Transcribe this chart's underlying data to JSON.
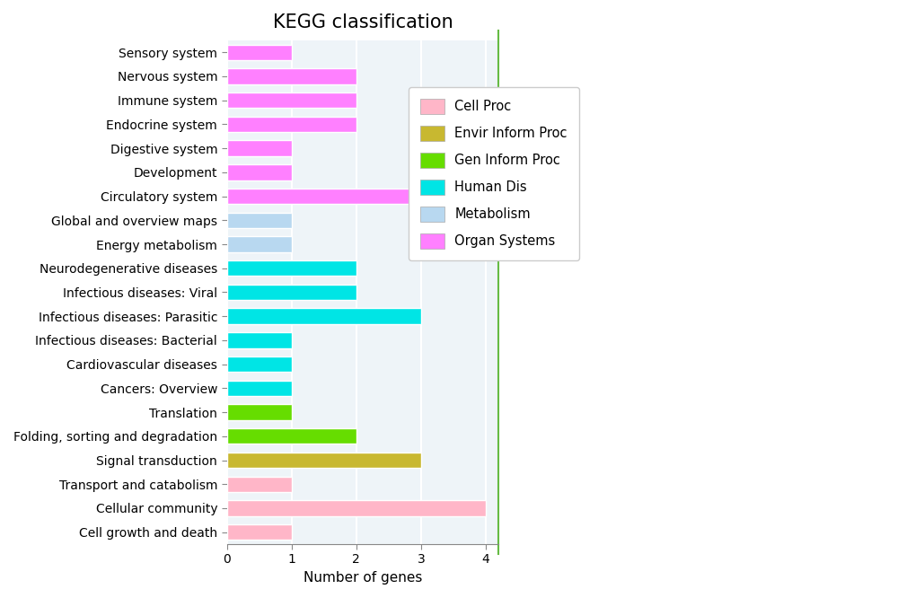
{
  "title": "KEGG classification",
  "xlabel": "Number of genes",
  "categories": [
    "Cell growth and death",
    "Cellular community",
    "Transport and catabolism",
    "Signal transduction",
    "Folding, sorting and degradation",
    "Translation",
    "Cancers: Overview",
    "Cardiovascular diseases",
    "Infectious diseases: Bacterial",
    "Infectious diseases: Parasitic",
    "Infectious diseases: Viral",
    "Neurodegenerative diseases",
    "Energy metabolism",
    "Global and overview maps",
    "Circulatory system",
    "Development",
    "Digestive system",
    "Endocrine system",
    "Immune system",
    "Nervous system",
    "Sensory system"
  ],
  "values": [
    1,
    4,
    1,
    3,
    2,
    1,
    1,
    1,
    1,
    3,
    2,
    2,
    1,
    1,
    3,
    1,
    1,
    2,
    2,
    2,
    1
  ],
  "colors": [
    "#FFB6C8",
    "#FFB6C8",
    "#FFB6C8",
    "#C8B830",
    "#66DD00",
    "#66DD00",
    "#00E5E5",
    "#00E5E5",
    "#00E5E5",
    "#00E5E5",
    "#00E5E5",
    "#00E5E5",
    "#B8D8F0",
    "#B8D8F0",
    "#FF80FF",
    "#FF80FF",
    "#FF80FF",
    "#FF80FF",
    "#FF80FF",
    "#FF80FF",
    "#FF80FF"
  ],
  "legend_labels": [
    "Cell Proc",
    "Envir Inform Proc",
    "Gen Inform Proc",
    "Human Dis",
    "Metabolism",
    "Organ Systems"
  ],
  "legend_colors": [
    "#FFB6C8",
    "#C8B830",
    "#66DD00",
    "#00E5E5",
    "#B8D8F0",
    "#FF80FF"
  ],
  "xlim": [
    0,
    4.2
  ],
  "plot_bg_color": "#EEF4F8",
  "fig_bg_color": "#FFFFFF",
  "grid_color": "#FFFFFF",
  "title_fontsize": 15,
  "label_fontsize": 11,
  "tick_fontsize": 10,
  "bar_height": 0.65,
  "right_line_color": "#66BB44"
}
